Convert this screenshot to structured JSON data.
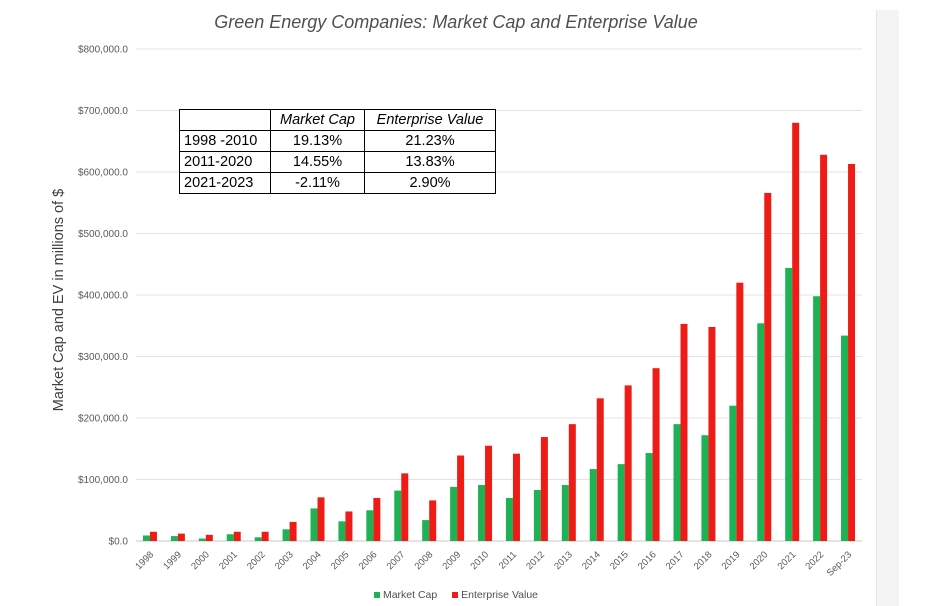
{
  "chart_data": {
    "type": "bar",
    "title": "Green Energy Companies: Market Cap and Enterprise Value",
    "ylabel": "Market Cap and EV in millions of $",
    "xlabel": "",
    "ylim": [
      0,
      800000
    ],
    "yticks": [
      0,
      100000,
      200000,
      300000,
      400000,
      500000,
      600000,
      700000,
      800000
    ],
    "ytick_labels": [
      "$0.0",
      "$100,000.0",
      "$200,000.0",
      "$300,000.0",
      "$400,000.0",
      "$500,000.0",
      "$600,000.0",
      "$700,000.0",
      "$800,000.0"
    ],
    "grid": true,
    "legend_position": "bottom",
    "categories": [
      "1998",
      "1999",
      "2000",
      "2001",
      "2002",
      "2003",
      "2004",
      "2005",
      "2006",
      "2007",
      "2008",
      "2009",
      "2010",
      "2011",
      "2012",
      "2013",
      "2014",
      "2015",
      "2016",
      "2017",
      "2018",
      "2019",
      "2020",
      "2021",
      "2022",
      "Sep-23"
    ],
    "series": [
      {
        "name": "Market Cap",
        "color": "#1fb254",
        "values": [
          9000,
          8000,
          4000,
          11000,
          6000,
          19000,
          53000,
          32000,
          50000,
          82000,
          34000,
          88000,
          91000,
          70000,
          83000,
          91000,
          117000,
          125000,
          143000,
          190000,
          172000,
          220000,
          354000,
          444000,
          398000,
          334000
        ]
      },
      {
        "name": "Enterprise Value",
        "color": "#ee1c17",
        "values": [
          15000,
          12000,
          10000,
          15000,
          15000,
          31000,
          71000,
          48000,
          70000,
          110000,
          66000,
          139000,
          155000,
          142000,
          169000,
          190000,
          232000,
          253000,
          281000,
          353000,
          348000,
          420000,
          566000,
          680000,
          628000,
          613000
        ]
      }
    ]
  },
  "cagr_table": {
    "headers": [
      "",
      "Market Cap",
      "Enterprise Value"
    ],
    "rows": [
      {
        "period": "1998 -2010",
        "market_cap": "19.13%",
        "enterprise_value": "21.23%"
      },
      {
        "period": "2011-2020",
        "market_cap": "14.55%",
        "enterprise_value": "13.83%"
      },
      {
        "period": "2021-2023",
        "market_cap": "-2.11%",
        "enterprise_value": "2.90%"
      }
    ]
  }
}
